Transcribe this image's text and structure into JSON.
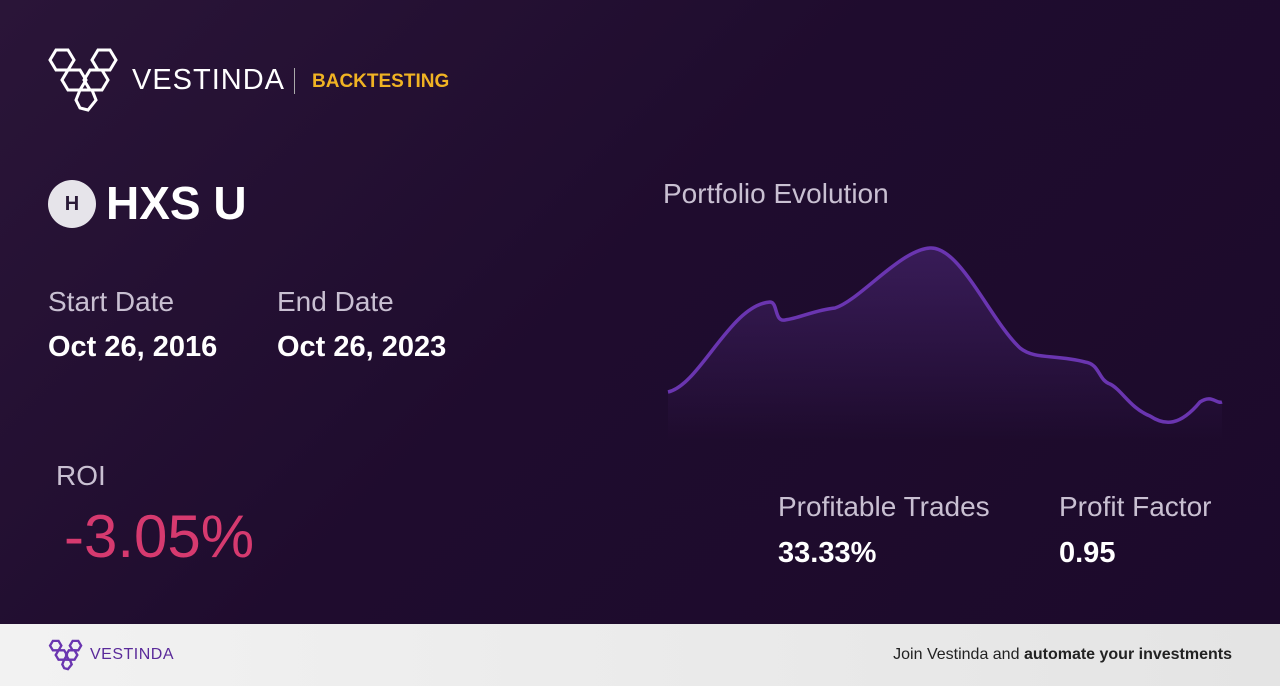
{
  "header": {
    "brand": "VESTINDA",
    "section": "BACKTESTING"
  },
  "ticker": {
    "icon": "H",
    "name": "HXS U"
  },
  "dates": {
    "start_label": "Start Date",
    "start": "Oct 26, 2016",
    "end_label": "End Date",
    "end": "Oct 26, 2023"
  },
  "roi": {
    "label": "ROI",
    "value": "-3.05%"
  },
  "chart": {
    "title": "Portfolio Evolution"
  },
  "stats": [
    {
      "label": "Profitable Trades",
      "value": "33.33%"
    },
    {
      "label": "Profit Factor",
      "value": "0.95"
    }
  ],
  "footer": {
    "brand": "VESTINDA",
    "text": "Join Vestinda and",
    "bold": "automate your investments"
  }
}
